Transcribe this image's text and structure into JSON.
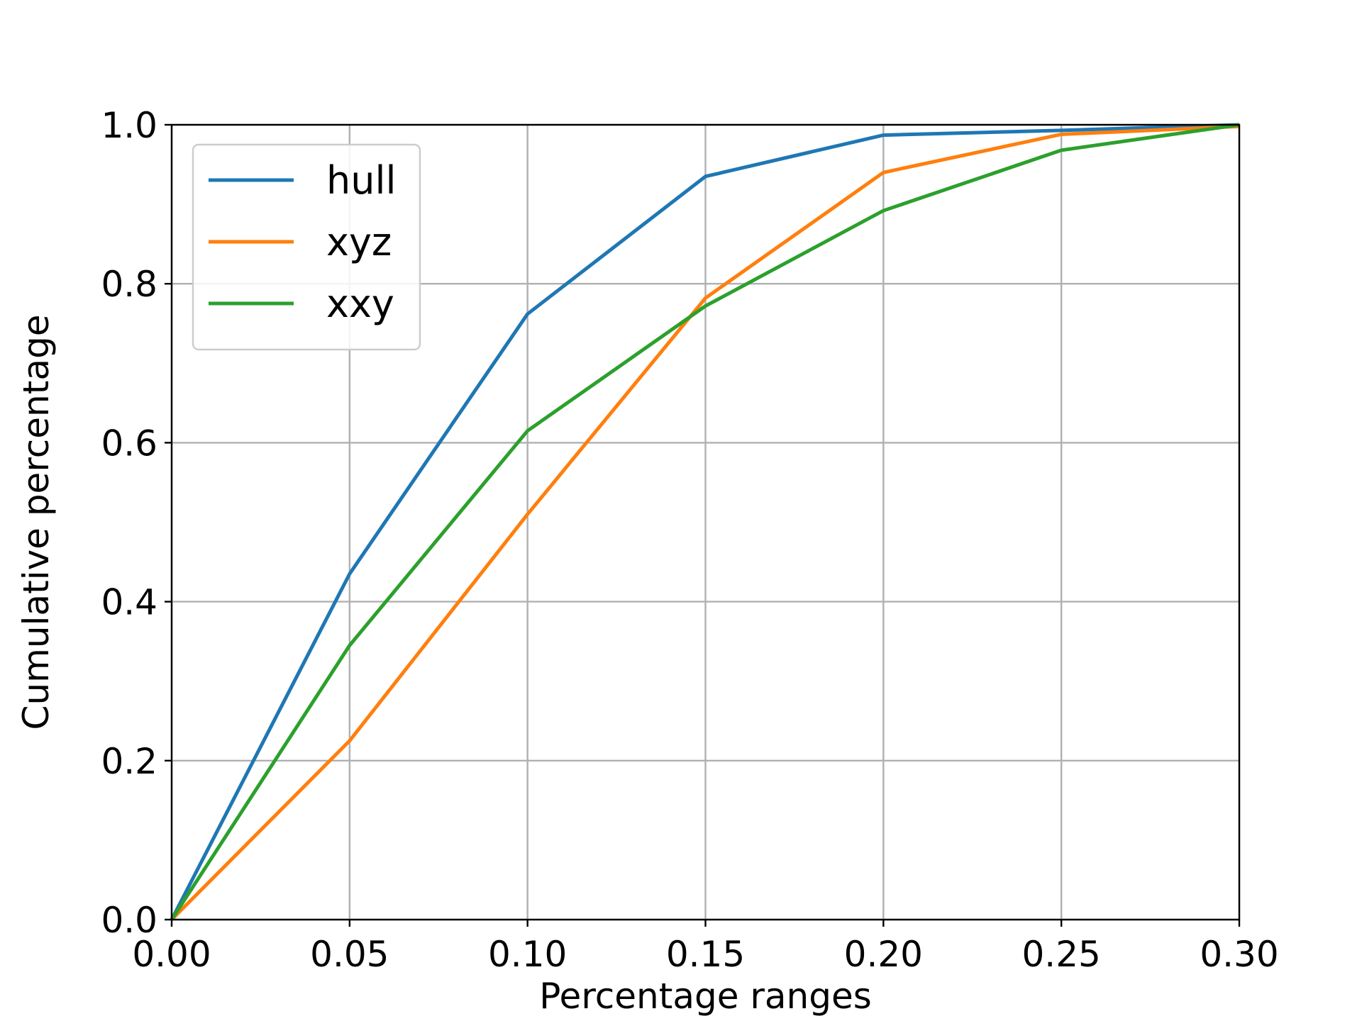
{
  "chart_data": {
    "type": "line",
    "title": "",
    "xlabel": "Percentage ranges",
    "ylabel": "Cumulative percentage",
    "xlim": [
      0.0,
      0.3
    ],
    "ylim": [
      0.0,
      1.0
    ],
    "x_ticks": [
      "0.00",
      "0.05",
      "0.10",
      "0.15",
      "0.20",
      "0.25",
      "0.30"
    ],
    "y_ticks": [
      "0.0",
      "0.2",
      "0.4",
      "0.6",
      "0.8",
      "1.0"
    ],
    "x": [
      0.0,
      0.05,
      0.1,
      0.15,
      0.2,
      0.25,
      0.3
    ],
    "grid": true,
    "legend_position": "top-left",
    "series": [
      {
        "name": "hull",
        "color": "#1f77b4",
        "values": [
          0.0,
          0.435,
          0.762,
          0.935,
          0.987,
          0.993,
          1.0
        ]
      },
      {
        "name": "xyz",
        "color": "#ff7f0e",
        "values": [
          0.0,
          0.225,
          0.51,
          0.782,
          0.94,
          0.988,
          0.998
        ]
      },
      {
        "name": "xxy",
        "color": "#2ca02c",
        "values": [
          0.0,
          0.345,
          0.615,
          0.772,
          0.892,
          0.968,
          1.0
        ]
      }
    ]
  }
}
